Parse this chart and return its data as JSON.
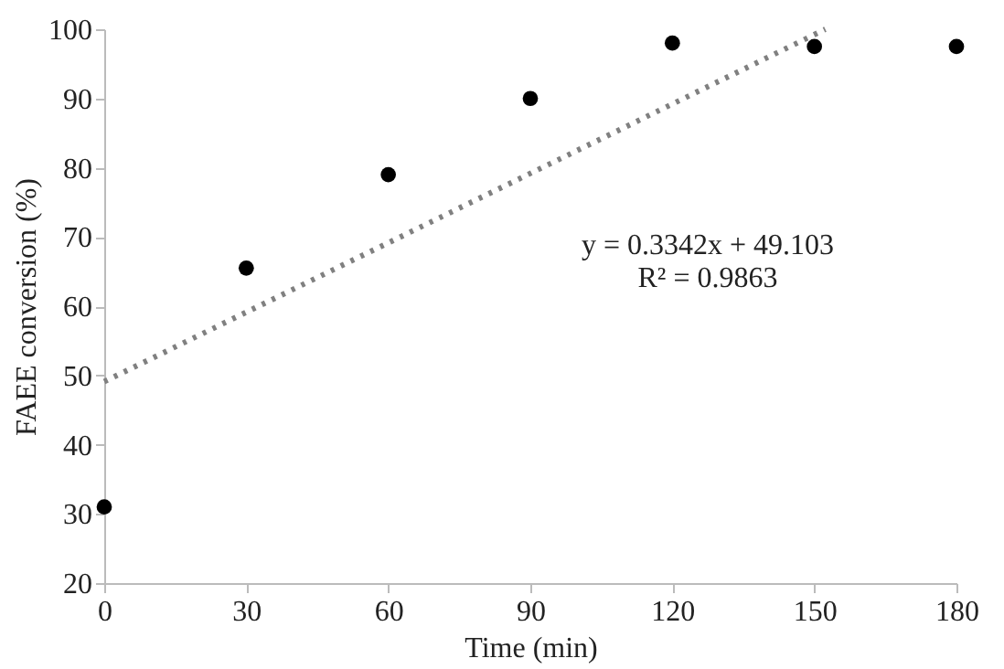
{
  "chart_data": {
    "type": "scatter",
    "xlabel": "Time (min)",
    "ylabel": "FAEE conversion (%)",
    "x": [
      0,
      30,
      60,
      90,
      120,
      150,
      180
    ],
    "series": [
      {
        "color": "#000000",
        "marker": "circle",
        "values": [
          31,
          65.5,
          79,
          90,
          98,
          97.5,
          97.5
        ]
      },
      {
        "type": "line",
        "color": "#808080",
        "line_style": "dotted",
        "x": [
          0,
          152.3
        ],
        "values": [
          49.1,
          100
        ]
      }
    ],
    "xlim": [
      0,
      180
    ],
    "xticks": [
      0,
      30,
      60,
      90,
      120,
      150,
      180
    ],
    "ylim": [
      20,
      100
    ],
    "yticks": [
      20,
      30,
      40,
      50,
      60,
      70,
      80,
      90,
      100
    ],
    "grid": false,
    "annotations": [
      "y = 0.3342x + 49.103\nR² = 0.9863"
    ]
  }
}
